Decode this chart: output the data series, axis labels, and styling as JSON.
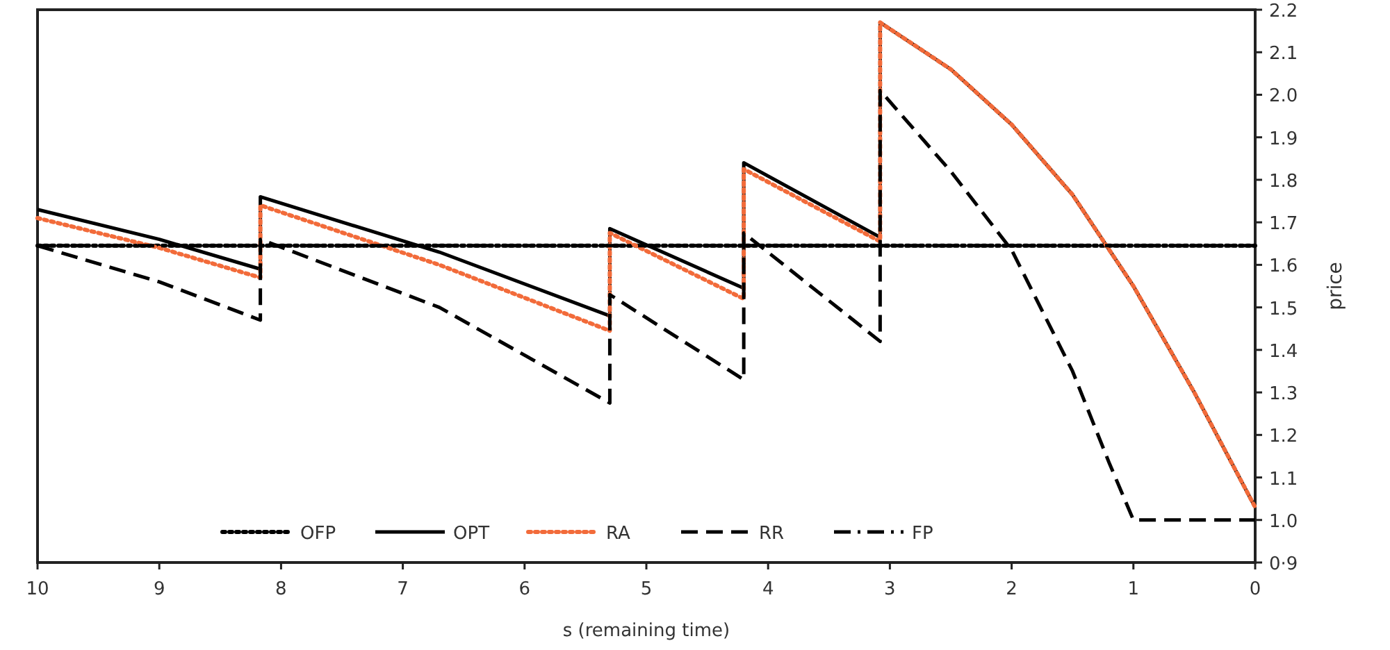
{
  "chart_data": {
    "type": "line",
    "xlabel": "s (remaining time)",
    "ylabel": "price",
    "xlim": [
      10,
      0
    ],
    "ylim": [
      0.9,
      2.2
    ],
    "xticks": [
      10,
      9,
      8,
      7,
      6,
      5,
      4,
      3,
      2,
      1,
      0
    ],
    "yticks": [
      {
        "value": 0.9,
        "label": "0·9"
      },
      {
        "value": 1.0,
        "label": "1.0"
      },
      1.1,
      1.2,
      1.3,
      1.4,
      1.5,
      1.6,
      1.7,
      1.8,
      1.9,
      {
        "value": 2.0,
        "label": "2.0"
      },
      2.1,
      2.2
    ],
    "legend": "bottom",
    "grid": false,
    "series": [
      {
        "name": "OFP",
        "color": "#000000",
        "line_style": "dotted",
        "x": [
          10,
          0
        ],
        "values": [
          1.645,
          1.645
        ]
      },
      {
        "name": "OPT",
        "color": "#000000",
        "line_style": "solid",
        "x": [
          10,
          9,
          8.17,
          8.17,
          6.7,
          5.3,
          5.3,
          4.2,
          4.2,
          3.08,
          3.08,
          2.5,
          2,
          1.5,
          1,
          0.5,
          0
        ],
        "values": [
          1.73,
          1.66,
          1.59,
          1.76,
          1.63,
          1.48,
          1.685,
          1.545,
          1.84,
          1.665,
          2.17,
          2.06,
          1.93,
          1.765,
          1.55,
          1.3,
          1.03
        ]
      },
      {
        "name": "RA",
        "color": "#f26b3a",
        "line_style": "dotted",
        "x": [
          10,
          9,
          8.17,
          8.17,
          6.7,
          5.3,
          5.3,
          4.2,
          4.2,
          3.08,
          3.08,
          2.5,
          2,
          1.5,
          1,
          0.5,
          0
        ],
        "values": [
          1.71,
          1.64,
          1.57,
          1.74,
          1.6,
          1.445,
          1.675,
          1.52,
          1.825,
          1.655,
          2.17,
          2.06,
          1.93,
          1.765,
          1.55,
          1.3,
          1.03
        ]
      },
      {
        "name": "RR",
        "color": "#000000",
        "line_style": "dashed",
        "x": [
          10,
          9,
          8.17,
          8.17,
          6.7,
          5.3,
          5.3,
          4.2,
          4.2,
          3.08,
          3.08,
          2.5,
          2,
          1.5,
          1.2,
          1,
          0
        ],
        "values": [
          1.645,
          1.56,
          1.47,
          1.66,
          1.5,
          1.275,
          1.53,
          1.33,
          1.675,
          1.42,
          2.01,
          1.82,
          1.635,
          1.35,
          1.135,
          1.0,
          1.0
        ]
      },
      {
        "name": "FP",
        "color": "#000000",
        "line_style": "dashdot",
        "x": [
          10,
          0
        ],
        "values": [
          1.645,
          1.645
        ]
      }
    ]
  }
}
